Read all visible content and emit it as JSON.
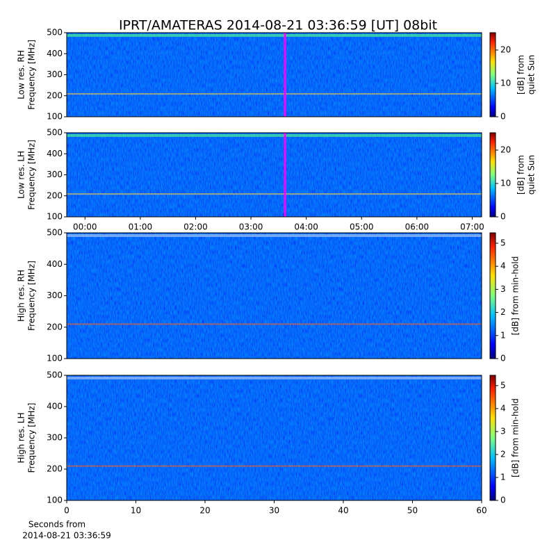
{
  "chart_data": [
    {
      "type": "heatmap",
      "title": "IPRT/AMATERAS 2014-08-21 03:36:59 [UT]   08bit",
      "ylabel": [
        "Low res. RH",
        "Frequency [MHz]"
      ],
      "ylim": [
        100,
        500
      ],
      "yticks": [
        100,
        200,
        300,
        400,
        500
      ],
      "xlim": [
        -0.33,
        7.17
      ],
      "marker_x": 3.616,
      "marker_color": "#ff00ff",
      "colorbar": {
        "label": [
          "[dB] from",
          "quiet Sun"
        ],
        "lim": [
          0,
          25.2
        ],
        "ticks": [
          0,
          10,
          20
        ]
      }
    },
    {
      "type": "heatmap",
      "ylabel": [
        "Low res. LH",
        "Frequency [MHz]"
      ],
      "ylim": [
        100,
        500
      ],
      "yticks": [
        100,
        200,
        300,
        400,
        500
      ],
      "xlim": [
        -0.33,
        7.17
      ],
      "marker_x": 3.616,
      "marker_color": "#ff00ff",
      "xticks": [
        {
          "value": 0,
          "label": "00:00"
        },
        {
          "value": 1,
          "label": "01:00"
        },
        {
          "value": 2,
          "label": "02:00"
        },
        {
          "value": 3,
          "label": "03:00"
        },
        {
          "value": 4,
          "label": "04:00"
        },
        {
          "value": 5,
          "label": "05:00"
        },
        {
          "value": 6,
          "label": "06:00"
        },
        {
          "value": 7,
          "label": "07:00"
        }
      ],
      "colorbar": {
        "label": [
          "[dB] from",
          "quiet Sun"
        ],
        "lim": [
          0,
          25.2
        ],
        "ticks": [
          0,
          10,
          20
        ]
      }
    },
    {
      "type": "heatmap",
      "ylabel": [
        "High res. RH",
        "Frequency [MHz]"
      ],
      "ylim": [
        100,
        500
      ],
      "yticks": [
        100,
        200,
        300,
        400,
        500
      ],
      "xlim": [
        0,
        60
      ],
      "colorbar": {
        "label": [
          "[dB] from min-hold"
        ],
        "lim": [
          0,
          5.45
        ],
        "ticks": [
          0,
          1,
          2,
          3,
          4,
          5
        ]
      }
    },
    {
      "type": "heatmap",
      "ylabel": [
        "High res. LH",
        "Frequency [MHz]"
      ],
      "ylim": [
        100,
        500
      ],
      "yticks": [
        100,
        200,
        300,
        400,
        500
      ],
      "xlim": [
        0,
        60
      ],
      "xticks": [
        0,
        10,
        20,
        30,
        40,
        50,
        60
      ],
      "xlabel": [
        "Seconds from",
        "2014-08-21 03:36:59"
      ],
      "colorbar": {
        "label": [
          "[dB] from min-hold"
        ],
        "lim": [
          0,
          5.45
        ],
        "ticks": [
          0,
          1,
          2,
          3,
          4,
          5
        ]
      }
    }
  ]
}
